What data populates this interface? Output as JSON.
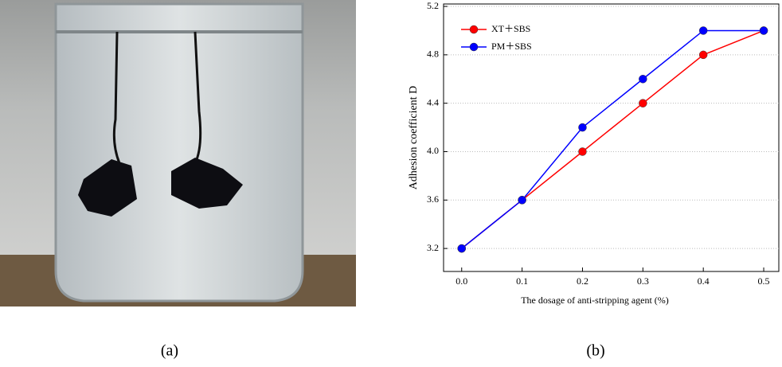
{
  "panel_labels": [
    "(a)",
    "(b)"
  ],
  "chart_data": {
    "type": "line",
    "x_label": "The dosage of anti-stripping agent (%)",
    "y_label": "Adhesion coefficient D",
    "x": [
      0,
      0.1,
      0.2,
      0.3,
      0.4,
      0.5
    ],
    "series": [
      {
        "name": "XT＋SBS",
        "color": "#ff0000",
        "values": [
          3.2,
          3.6,
          4.0,
          4.4,
          4.8,
          5.0
        ]
      },
      {
        "name": "PM＋SBS",
        "color": "#0000ff",
        "values": [
          3.2,
          3.6,
          4.2,
          4.6,
          5.0,
          5.0
        ]
      }
    ],
    "xlim": [
      -0.03,
      0.525
    ],
    "ylim": [
      3.01,
      5.22
    ],
    "xticks": [
      {
        "value": 0,
        "label": "0.0"
      },
      0.1,
      0.2,
      0.3,
      0.4,
      0.5
    ],
    "yticks": [
      3.2,
      3.6,
      {
        "value": 4,
        "label": "4.0"
      },
      4.4,
      4.8,
      5.2
    ],
    "grid": true,
    "legend": "upper left"
  }
}
